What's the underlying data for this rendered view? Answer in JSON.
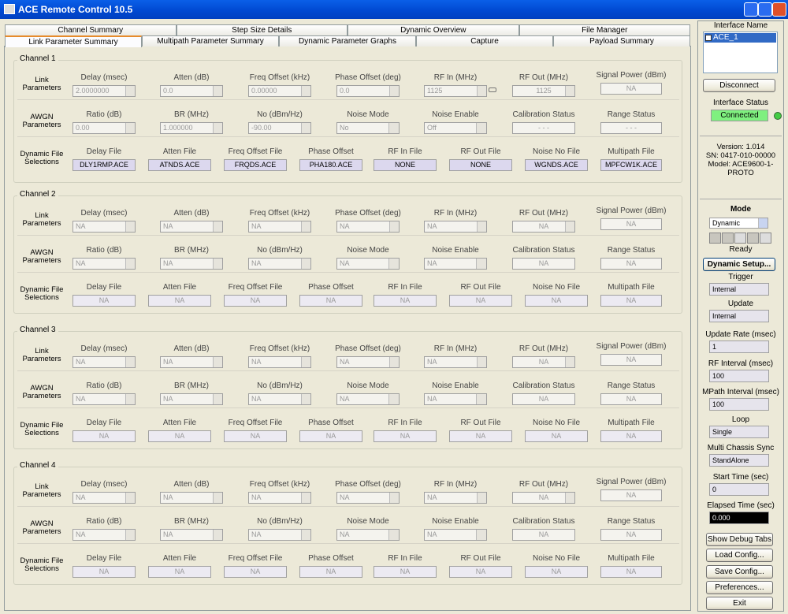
{
  "window": {
    "title": "ACE Remote Control 10.5"
  },
  "tabs": {
    "row1": [
      "Channel Summary",
      "Step Size Details",
      "Dynamic Overview",
      "File Manager"
    ],
    "row2": [
      "Link Parameter Summary",
      "Multipath Parameter Summary",
      "Dynamic Parameter Graphs",
      "Capture",
      "Payload Summary"
    ]
  },
  "channels": [
    {
      "title": "Channel 1",
      "groups": [
        {
          "label": "Link Parameters",
          "fields": [
            {
              "label": "Delay (msec)",
              "value": "2.0000000"
            },
            {
              "label": "Atten (dB)",
              "value": "0.0"
            },
            {
              "label": "Freq Offset (kHz)",
              "value": "0.00000"
            },
            {
              "label": "Phase Offset (deg)",
              "value": "0.0"
            },
            {
              "label": "RF In (MHz)",
              "value": "1125"
            },
            {
              "label": "RF Out (MHz)",
              "value": "1125"
            },
            {
              "label": "Signal Power (dBm)",
              "value": "NA"
            }
          ]
        },
        {
          "label": "AWGN Parameters",
          "fields": [
            {
              "label": "Ratio (dB)",
              "value": "0.00"
            },
            {
              "label": "BR (MHz)",
              "value": "1.000000"
            },
            {
              "label": "No (dBm/Hz)",
              "value": "-90.00"
            },
            {
              "label": "Noise Mode",
              "value": "No"
            },
            {
              "label": "Noise Enable",
              "value": "Off"
            },
            {
              "label": "Calibration Status",
              "value": "- - -"
            },
            {
              "label": "Range Status",
              "value": "- - -"
            }
          ]
        },
        {
          "label": "Dynamic File Selections",
          "fields": [
            {
              "label": "Delay File",
              "value": "DLY1RMP.ACE"
            },
            {
              "label": "Atten File",
              "value": "ATNDS.ACE"
            },
            {
              "label": "Freq Offset File",
              "value": "FRQDS.ACE"
            },
            {
              "label": "Phase Offset",
              "value": "PHA180.ACE"
            },
            {
              "label": "RF In File",
              "value": "NONE"
            },
            {
              "label": "RF Out File",
              "value": "NONE"
            },
            {
              "label": "Noise No File",
              "value": "WGNDS.ACE"
            },
            {
              "label": "Multipath File",
              "value": "MPFCW1K.ACE"
            }
          ]
        }
      ]
    },
    {
      "title": "Channel 2",
      "groups": [
        {
          "label": "Link Parameters",
          "fields": [
            {
              "label": "Delay (msec)",
              "value": "NA"
            },
            {
              "label": "Atten (dB)",
              "value": "NA"
            },
            {
              "label": "Freq Offset (kHz)",
              "value": "NA"
            },
            {
              "label": "Phase Offset (deg)",
              "value": "NA"
            },
            {
              "label": "RF In (MHz)",
              "value": "NA"
            },
            {
              "label": "RF Out (MHz)",
              "value": "NA"
            },
            {
              "label": "Signal Power (dBm)",
              "value": "NA"
            }
          ]
        },
        {
          "label": "AWGN Parameters",
          "fields": [
            {
              "label": "Ratio (dB)",
              "value": "NA"
            },
            {
              "label": "BR (MHz)",
              "value": "NA"
            },
            {
              "label": "No (dBm/Hz)",
              "value": "NA"
            },
            {
              "label": "Noise Mode",
              "value": "NA"
            },
            {
              "label": "Noise Enable",
              "value": "NA"
            },
            {
              "label": "Calibration Status",
              "value": "NA"
            },
            {
              "label": "Range Status",
              "value": "NA"
            }
          ]
        },
        {
          "label": "Dynamic File Selections",
          "fields": [
            {
              "label": "Delay File",
              "value": "NA"
            },
            {
              "label": "Atten File",
              "value": "NA"
            },
            {
              "label": "Freq Offset File",
              "value": "NA"
            },
            {
              "label": "Phase Offset",
              "value": "NA"
            },
            {
              "label": "RF In File",
              "value": "NA"
            },
            {
              "label": "RF Out File",
              "value": "NA"
            },
            {
              "label": "Noise No File",
              "value": "NA"
            },
            {
              "label": "Multipath File",
              "value": "NA"
            }
          ]
        }
      ]
    },
    {
      "title": "Channel 3",
      "groups": [
        {
          "label": "Link Parameters",
          "fields": [
            {
              "label": "Delay (msec)",
              "value": "NA"
            },
            {
              "label": "Atten (dB)",
              "value": "NA"
            },
            {
              "label": "Freq Offset (kHz)",
              "value": "NA"
            },
            {
              "label": "Phase Offset (deg)",
              "value": "NA"
            },
            {
              "label": "RF In (MHz)",
              "value": "NA"
            },
            {
              "label": "RF Out (MHz)",
              "value": "NA"
            },
            {
              "label": "Signal Power (dBm)",
              "value": "NA"
            }
          ]
        },
        {
          "label": "AWGN Parameters",
          "fields": [
            {
              "label": "Ratio (dB)",
              "value": "NA"
            },
            {
              "label": "BR (MHz)",
              "value": "NA"
            },
            {
              "label": "No (dBm/Hz)",
              "value": "NA"
            },
            {
              "label": "Noise Mode",
              "value": "NA"
            },
            {
              "label": "Noise Enable",
              "value": "NA"
            },
            {
              "label": "Calibration Status",
              "value": "NA"
            },
            {
              "label": "Range Status",
              "value": "NA"
            }
          ]
        },
        {
          "label": "Dynamic File Selections",
          "fields": [
            {
              "label": "Delay File",
              "value": "NA"
            },
            {
              "label": "Atten File",
              "value": "NA"
            },
            {
              "label": "Freq Offset File",
              "value": "NA"
            },
            {
              "label": "Phase Offset",
              "value": "NA"
            },
            {
              "label": "RF In File",
              "value": "NA"
            },
            {
              "label": "RF Out File",
              "value": "NA"
            },
            {
              "label": "Noise No File",
              "value": "NA"
            },
            {
              "label": "Multipath File",
              "value": "NA"
            }
          ]
        }
      ]
    },
    {
      "title": "Channel 4",
      "groups": [
        {
          "label": "Link Parameters",
          "fields": [
            {
              "label": "Delay (msec)",
              "value": "NA"
            },
            {
              "label": "Atten (dB)",
              "value": "NA"
            },
            {
              "label": "Freq Offset (kHz)",
              "value": "NA"
            },
            {
              "label": "Phase Offset (deg)",
              "value": "NA"
            },
            {
              "label": "RF In (MHz)",
              "value": "NA"
            },
            {
              "label": "RF Out (MHz)",
              "value": "NA"
            },
            {
              "label": "Signal Power (dBm)",
              "value": "NA"
            }
          ]
        },
        {
          "label": "AWGN Parameters",
          "fields": [
            {
              "label": "Ratio (dB)",
              "value": "NA"
            },
            {
              "label": "BR (MHz)",
              "value": "NA"
            },
            {
              "label": "No (dBm/Hz)",
              "value": "NA"
            },
            {
              "label": "Noise Mode",
              "value": "NA"
            },
            {
              "label": "Noise Enable",
              "value": "NA"
            },
            {
              "label": "Calibration Status",
              "value": "NA"
            },
            {
              "label": "Range Status",
              "value": "NA"
            }
          ]
        },
        {
          "label": "Dynamic File Selections",
          "fields": [
            {
              "label": "Delay File",
              "value": "NA"
            },
            {
              "label": "Atten File",
              "value": "NA"
            },
            {
              "label": "Freq Offset File",
              "value": "NA"
            },
            {
              "label": "Phase Offset",
              "value": "NA"
            },
            {
              "label": "RF In File",
              "value": "NA"
            },
            {
              "label": "RF Out File",
              "value": "NA"
            },
            {
              "label": "Noise No File",
              "value": "NA"
            },
            {
              "label": "Multipath File",
              "value": "NA"
            }
          ]
        }
      ]
    }
  ],
  "sidebar": {
    "interface_name_label": "Interface Name",
    "interface": "ACE_1",
    "disconnect": "Disconnect",
    "interface_status_label": "Interface Status",
    "interface_status": "Connected",
    "version": "Version: 1.014",
    "serial": "SN: 0417-010-00000",
    "model": "Model: ACE9600-1-PROTO",
    "mode_label": "Mode",
    "mode": "Dynamic",
    "state": "Ready",
    "dynamic_setup": "Dynamic Setup...",
    "settings": [
      {
        "label": "Trigger",
        "value": "Internal"
      },
      {
        "label": "Update",
        "value": "Internal"
      },
      {
        "label": "Update Rate (msec)",
        "value": "1"
      },
      {
        "label": "RF Interval (msec)",
        "value": "100"
      },
      {
        "label": "MPath Interval (msec)",
        "value": "100"
      },
      {
        "label": "Loop",
        "value": "Single"
      },
      {
        "label": "Multi Chassis Sync",
        "value": "StandAlone"
      },
      {
        "label": "Start Time (sec)",
        "value": "0"
      },
      {
        "label": "Elapsed Time (sec)",
        "value": "0.000"
      }
    ],
    "buttons": [
      "Show Debug Tabs",
      "Load Config...",
      "Save Config...",
      "Preferences...",
      "Exit"
    ]
  }
}
